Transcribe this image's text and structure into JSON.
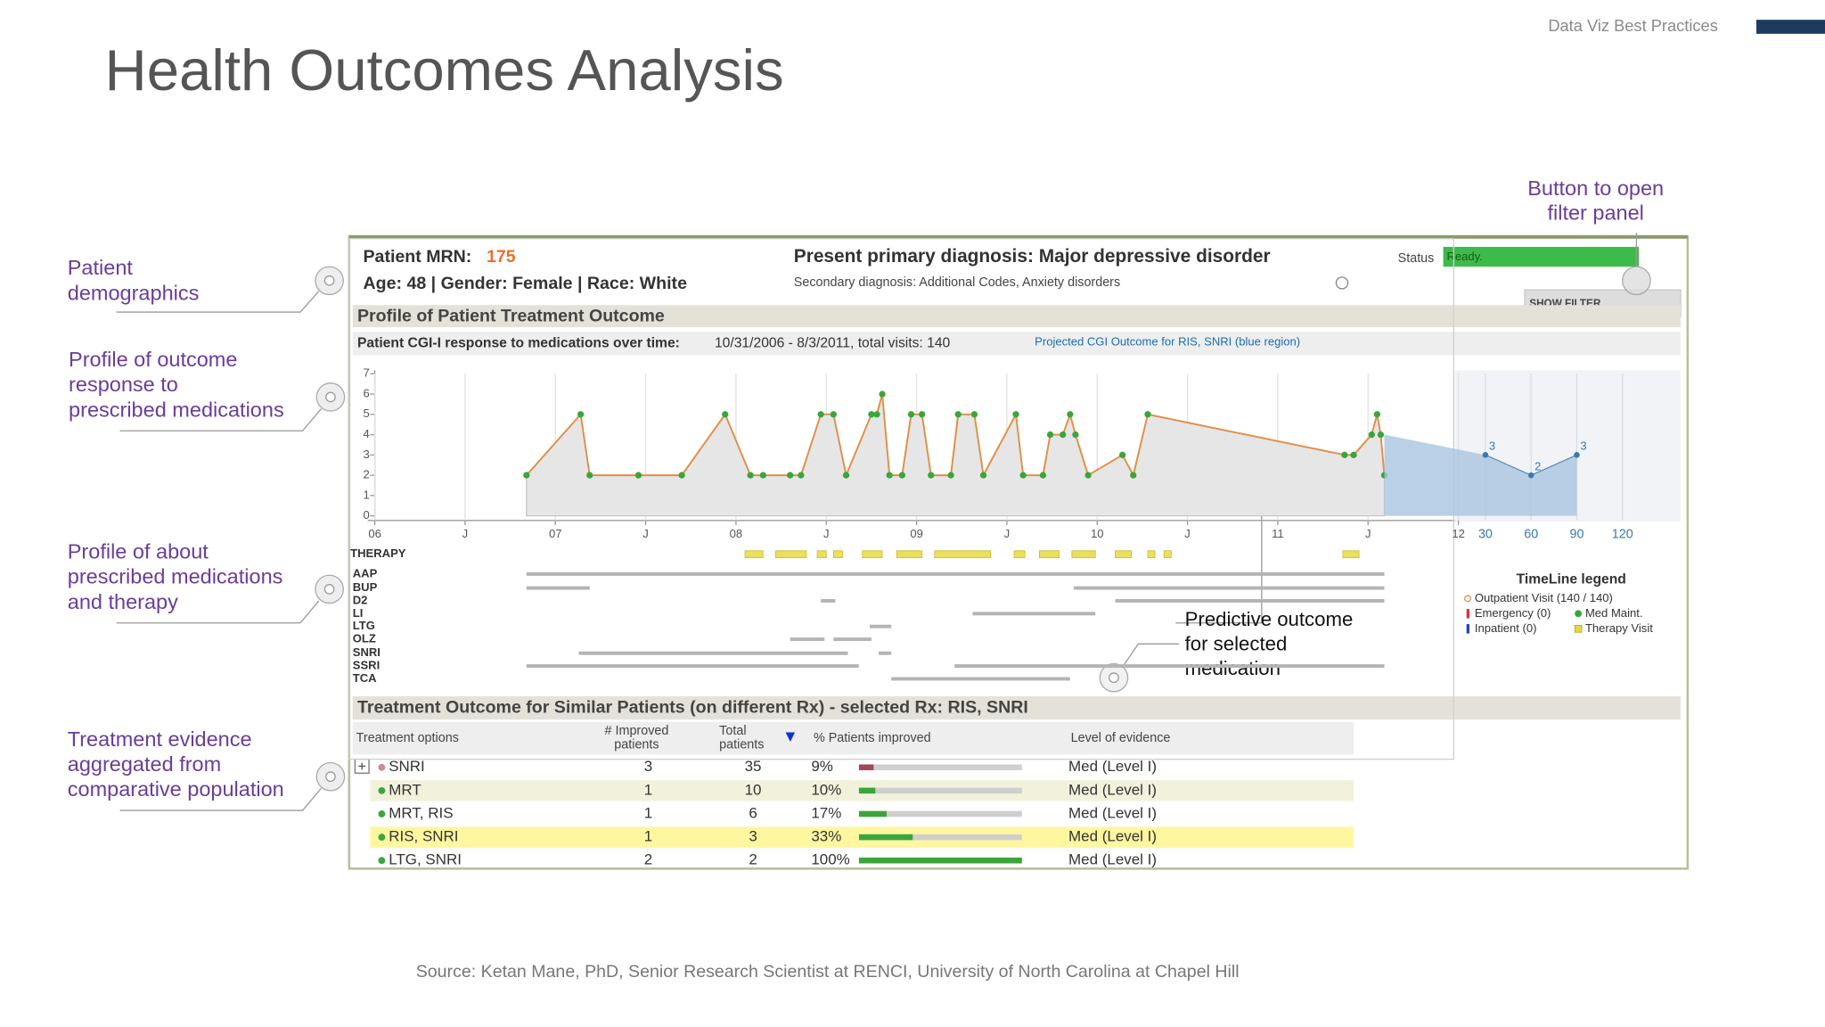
{
  "header": {
    "brand": "Data Viz Best Practices",
    "title": "Health Outcomes Analysis"
  },
  "annotations": [
    {
      "lines": [
        "Patient",
        "demographics"
      ]
    },
    {
      "lines": [
        "Profile of outcome",
        "response to",
        "prescribed medications"
      ]
    },
    {
      "lines": [
        "Profile of about",
        "prescribed medications",
        "and therapy"
      ]
    },
    {
      "lines": [
        "Treatment evidence",
        "aggregated from",
        "comparative population"
      ]
    },
    {
      "lines": [
        "Button to open",
        "filter panel"
      ]
    },
    {
      "lines": [
        "Predictive outcome",
        "for selected",
        "medication"
      ]
    }
  ],
  "source": "Source: Ketan Mane, PhD, Senior Research Scientist at RENCI, University of North Carolina at Chapel Hill",
  "dashboard": {
    "patient": {
      "mrn_label": "Patient MRN:",
      "mrn": "175",
      "demographics": "Age: 48  |  Gender: Female  |  Race: White",
      "primary_diagnosis": "Present primary diagnosis: Major depressive disorder",
      "secondary_diagnosis": "Secondary diagnosis: Additional Codes, Anxiety disorders"
    },
    "status": {
      "label": "Status",
      "value": "Ready."
    },
    "filter_button": "SHOW FILTER",
    "profile_title": "Profile of Patient Treatment Outcome",
    "therapy": {
      "label": "THERAPY",
      "visit_color": "#ece05a",
      "bar_color": "#b4b4b4",
      "visits": [
        [
          8.05,
          8.15
        ],
        [
          8.22,
          8.39
        ],
        [
          8.45,
          8.5
        ],
        [
          8.54,
          8.59
        ],
        [
          8.7,
          8.81
        ],
        [
          8.89,
          9.03
        ],
        [
          9.1,
          9.41
        ],
        [
          9.54,
          9.6
        ],
        [
          9.68,
          9.79
        ],
        [
          9.86,
          9.99
        ],
        [
          10.1,
          10.19
        ],
        [
          10.28,
          10.32
        ],
        [
          10.37,
          10.41
        ],
        [
          11.36,
          11.45
        ]
      ],
      "rows": [
        {
          "name": "AAP",
          "spans": [
            [
              6.84,
              11.59
            ]
          ]
        },
        {
          "name": "BUP",
          "spans": [
            [
              6.84,
              7.19
            ],
            [
              9.87,
              11.59
            ]
          ]
        },
        {
          "name": "D2",
          "spans": [
            [
              8.47,
              8.55
            ],
            [
              10.1,
              11.59
            ]
          ]
        },
        {
          "name": "LI",
          "spans": [
            [
              9.31,
              9.99
            ]
          ]
        },
        {
          "name": "LTG",
          "spans": [
            [
              8.74,
              8.86
            ]
          ]
        },
        {
          "name": "OLZ",
          "spans": [
            [
              8.3,
              8.49
            ],
            [
              8.54,
              8.75
            ]
          ]
        },
        {
          "name": "SNRI",
          "spans": [
            [
              7.13,
              8.62
            ],
            [
              8.79,
              8.86
            ]
          ]
        },
        {
          "name": "SSRI",
          "spans": [
            [
              6.84,
              8.68
            ],
            [
              9.21,
              11.59
            ]
          ]
        },
        {
          "name": "TCA",
          "spans": [
            [
              8.86,
              9.85
            ]
          ]
        }
      ]
    },
    "timeline_legend": {
      "title": "TimeLine legend",
      "items": [
        {
          "name": "Outpatient Visit (140 / 140)",
          "color": "#e0904a"
        },
        {
          "name": "Emergency (0)",
          "color": "#e03030"
        },
        {
          "name": "Inpatient (0)",
          "color": "#2040c0"
        },
        {
          "name": "Med Maint.",
          "color": "#3aa63a"
        },
        {
          "name": "Therapy Visit",
          "color": "#e8d840"
        }
      ]
    },
    "similar_patients": {
      "title": "Treatment Outcome for Similar Patients (on different Rx) - selected Rx: RIS, SNRI",
      "columns": [
        [
          "Treatment options"
        ],
        [
          "# Improved",
          "patients"
        ],
        [
          "Total",
          "patients"
        ],
        [
          "% Patients improved"
        ],
        [
          "Level of evidence"
        ]
      ],
      "rows": [
        {
          "option": "SNRI",
          "dot_color": "#d08898",
          "improved": 3,
          "total": 35,
          "pct": 9,
          "pct_label": "9%",
          "bar_color": "#a04a5a",
          "evidence": "Med (Level I)"
        },
        {
          "option": "MRT",
          "dot_color": "#3aa63a",
          "improved": 1,
          "total": 10,
          "pct": 10,
          "pct_label": "10%",
          "bar_color": "#3aa63a",
          "evidence": "Med (Level I)",
          "highlight": "#f2f2dc"
        },
        {
          "option": "MRT, RIS",
          "dot_color": "#3aa63a",
          "improved": 1,
          "total": 6,
          "pct": 17,
          "pct_label": "17%",
          "bar_color": "#3aa63a",
          "evidence": "Med (Level I)"
        },
        {
          "option": "RIS, SNRI",
          "dot_color": "#3aa63a",
          "improved": 1,
          "total": 3,
          "pct": 33,
          "pct_label": "33%",
          "bar_color": "#3aa63a",
          "evidence": "Med (Level I)",
          "highlight": "#fff7a0"
        },
        {
          "option": "LTG, SNRI",
          "dot_color": "#3aa63a",
          "improved": 2,
          "total": 2,
          "pct": 100,
          "pct_label": "100%",
          "bar_color": "#3aa63a",
          "evidence": "Med (Level I)"
        }
      ]
    }
  },
  "chart_data": {
    "type": "line",
    "title": "Patient CGI-I response to medications over time:",
    "subtitle": "10/31/2006 - 8/3/2011, total visits: 140",
    "annotation": "Projected CGI Outcome for RIS, SNRI (blue region)",
    "xlim": [
      6,
      12
    ],
    "ylim": [
      0,
      7
    ],
    "yticks": [
      0,
      1,
      2,
      3,
      4,
      5,
      6,
      7
    ],
    "xticks": [
      {
        "value": 6,
        "label": "06"
      },
      {
        "value": 6.5,
        "label": "J"
      },
      {
        "value": 7,
        "label": "07"
      },
      {
        "value": 7.5,
        "label": "J"
      },
      {
        "value": 8,
        "label": "08"
      },
      {
        "value": 8.5,
        "label": "J"
      },
      {
        "value": 9,
        "label": "09"
      },
      {
        "value": 9.5,
        "label": "J"
      },
      {
        "value": 10,
        "label": "10"
      },
      {
        "value": 10.5,
        "label": "J"
      },
      {
        "value": 11,
        "label": "11"
      },
      {
        "value": 11.5,
        "label": "J"
      },
      {
        "value": 12,
        "label": "12"
      }
    ],
    "grid": true,
    "series": [
      {
        "color": "#e0904a",
        "marker_color": "#3aa63a",
        "area_color": "#e6e6e6",
        "x": [
          6.84,
          7.14,
          7.19,
          7.46,
          7.7,
          7.94,
          8.08,
          8.15,
          8.3,
          8.36,
          8.47,
          8.54,
          8.61,
          8.75,
          8.78,
          8.81,
          8.85,
          8.92,
          8.97,
          9.03,
          9.08,
          9.19,
          9.23,
          9.32,
          9.37,
          9.55,
          9.59,
          9.7,
          9.74,
          9.81,
          9.85,
          9.88,
          9.95,
          10.14,
          10.2,
          10.28,
          11.37,
          11.42,
          11.52,
          11.55,
          11.57,
          11.59
        ],
        "values": [
          2,
          5,
          2,
          2,
          2,
          5,
          2,
          2,
          2,
          2,
          5,
          5,
          2,
          5,
          5,
          6,
          2,
          2,
          5,
          5,
          2,
          2,
          5,
          5,
          2,
          5,
          2,
          2,
          4,
          4,
          5,
          4,
          2,
          3,
          2,
          5,
          3,
          3,
          4,
          5,
          4,
          2
        ]
      }
    ],
    "projection": {
      "color": "#a8c4e0",
      "start_value": 4,
      "xlim": [
        0,
        120
      ],
      "xticks": [
        30,
        60,
        90,
        120
      ],
      "x": [
        30,
        60,
        90
      ],
      "values": [
        3,
        2,
        3
      ]
    }
  }
}
